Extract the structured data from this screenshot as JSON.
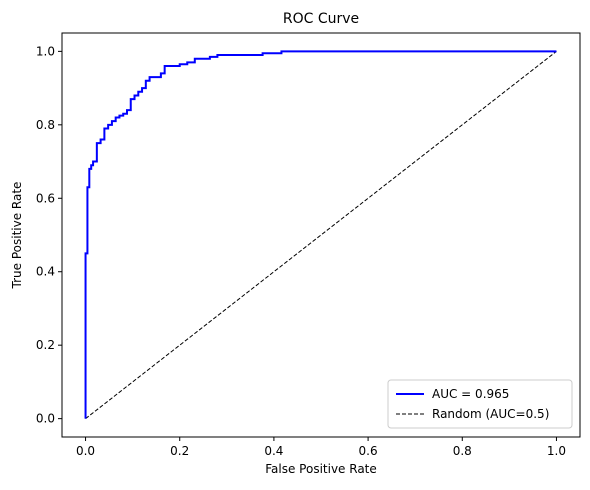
{
  "chart_data": {
    "type": "line",
    "title": "ROC Curve",
    "xlabel": "False Positive Rate",
    "ylabel": "True Positive Rate",
    "xlim": [
      -0.05,
      1.05
    ],
    "ylim": [
      -0.05,
      1.05
    ],
    "xticks": [
      0.0,
      0.2,
      0.4,
      0.6,
      0.8,
      1.0
    ],
    "yticks": [
      0.0,
      0.2,
      0.4,
      0.6,
      0.8,
      1.0
    ],
    "xtick_labels": [
      "0.0",
      "0.2",
      "0.4",
      "0.6",
      "0.8",
      "1.0"
    ],
    "ytick_labels": [
      "0.0",
      "0.2",
      "0.4",
      "0.6",
      "0.8",
      "1.0"
    ],
    "grid": false,
    "legend_position": "lower-right",
    "series": [
      {
        "name": "AUC = 0.965",
        "color": "#0000ff",
        "style": "solid",
        "x": [
          0.0,
          0.0,
          0.004,
          0.004,
          0.008,
          0.008,
          0.012,
          0.012,
          0.016,
          0.016,
          0.024,
          0.024,
          0.032,
          0.032,
          0.04,
          0.04,
          0.048,
          0.048,
          0.056,
          0.056,
          0.064,
          0.064,
          0.072,
          0.072,
          0.08,
          0.08,
          0.088,
          0.088,
          0.096,
          0.096,
          0.104,
          0.104,
          0.112,
          0.112,
          0.12,
          0.12,
          0.128,
          0.128,
          0.136,
          0.136,
          0.16,
          0.16,
          0.168,
          0.168,
          0.2,
          0.2,
          0.216,
          0.216,
          0.232,
          0.232,
          0.264,
          0.264,
          0.28,
          0.28,
          0.376,
          0.376,
          0.416,
          0.416,
          1.0
        ],
        "y": [
          0.0,
          0.45,
          0.45,
          0.63,
          0.63,
          0.68,
          0.68,
          0.69,
          0.69,
          0.7,
          0.7,
          0.75,
          0.75,
          0.76,
          0.76,
          0.79,
          0.79,
          0.8,
          0.8,
          0.81,
          0.81,
          0.82,
          0.82,
          0.825,
          0.825,
          0.83,
          0.83,
          0.84,
          0.84,
          0.87,
          0.87,
          0.88,
          0.88,
          0.89,
          0.89,
          0.9,
          0.9,
          0.92,
          0.92,
          0.93,
          0.93,
          0.94,
          0.94,
          0.96,
          0.96,
          0.965,
          0.965,
          0.97,
          0.97,
          0.98,
          0.98,
          0.985,
          0.985,
          0.99,
          0.99,
          0.995,
          0.995,
          1.0,
          1.0
        ]
      },
      {
        "name": "Random (AUC=0.5)",
        "color": "#000000",
        "style": "dashed",
        "x": [
          0.0,
          1.0
        ],
        "y": [
          0.0,
          1.0
        ]
      }
    ]
  }
}
